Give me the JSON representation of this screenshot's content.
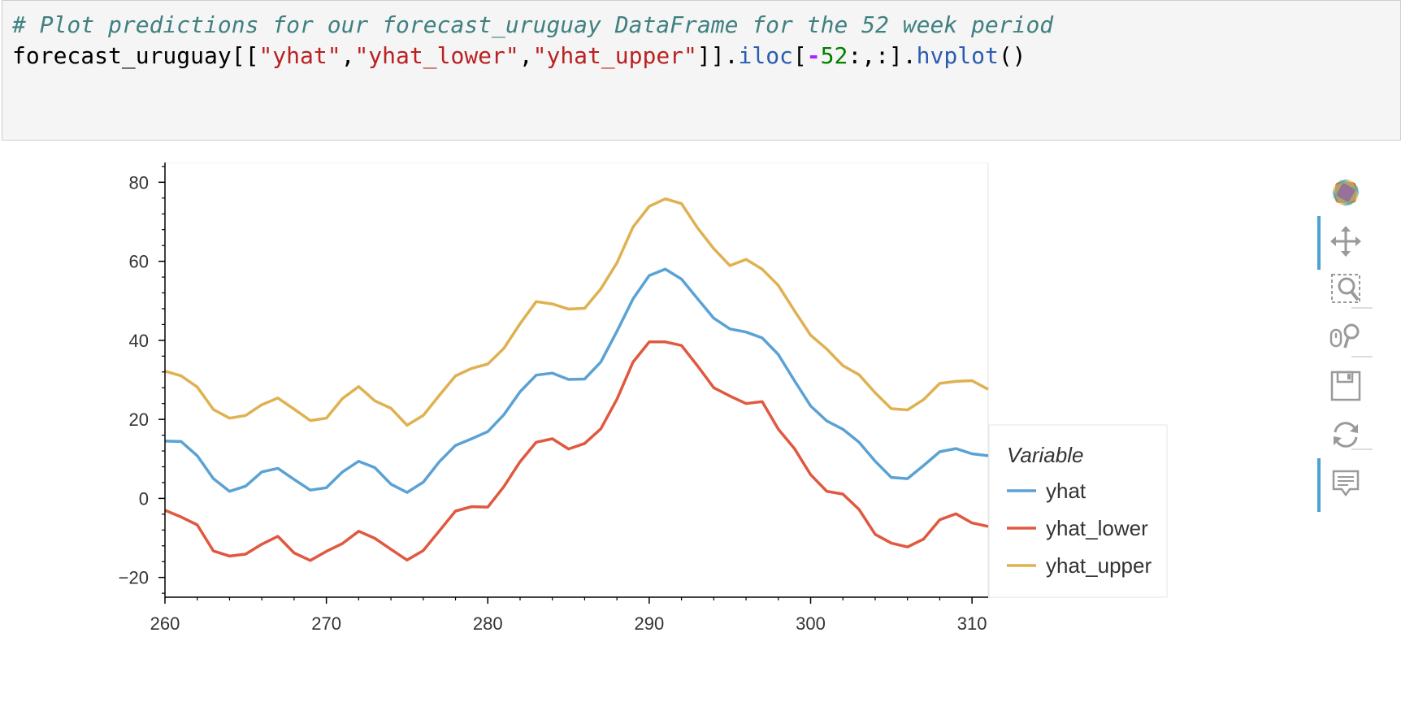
{
  "code": {
    "comment": "# Plot predictions for our forecast_uruguay DataFrame for the 52 week period",
    "t_var": "forecast_uruguay",
    "t_open": "[[",
    "t_s1": "\"yhat\"",
    "t_c1": ",",
    "t_s2": "\"yhat_lower\"",
    "t_c2": ",",
    "t_s3": "\"yhat_upper\"",
    "t_close": "]].",
    "t_iloc": "iloc",
    "t_b": "[",
    "t_minus": "-",
    "t_num": "52",
    "t_slice": ":,:].",
    "t_hv": "hvplot",
    "t_paren": "()"
  },
  "chart_data": {
    "type": "line",
    "x": [
      260,
      261,
      262,
      263,
      264,
      265,
      266,
      267,
      268,
      269,
      270,
      271,
      272,
      273,
      274,
      275,
      276,
      277,
      278,
      279,
      280,
      281,
      282,
      283,
      284,
      285,
      286,
      287,
      288,
      289,
      290,
      291,
      292,
      293,
      294,
      295,
      296,
      297,
      298,
      299,
      300,
      301,
      302,
      303,
      304,
      305,
      306,
      307,
      308,
      309,
      310,
      311
    ],
    "series": [
      {
        "name": "yhat",
        "color": "#5aa2d4",
        "values": [
          14.5,
          14.4,
          10.8,
          5,
          1.8,
          3.1,
          6.7,
          7.6,
          4.8,
          2.1,
          2.7,
          6.7,
          9.4,
          7.8,
          3.6,
          1.5,
          4.1,
          9.3,
          13.4,
          15.1,
          16.9,
          21.2,
          27,
          31.2,
          31.7,
          30.1,
          30.2,
          34.5,
          42.3,
          50.5,
          56.4,
          58,
          55.5,
          50.5,
          45.6,
          42.9,
          42.1,
          40.6,
          36.4,
          29.8,
          23.4,
          19.6,
          17.5,
          14.2,
          9.4,
          5.3,
          5,
          8.3,
          11.8,
          12.6,
          11.3,
          10.8
        ]
      },
      {
        "name": "yhat_lower",
        "color": "#e0583f",
        "values": [
          -3,
          -4.7,
          -6.7,
          -13.3,
          -14.6,
          -14.1,
          -11.6,
          -9.6,
          -13.8,
          -15.7,
          -13.4,
          -11.4,
          -8.3,
          -10.1,
          -12.9,
          -15.6,
          -13.2,
          -8.2,
          -3.2,
          -2.1,
          -2.2,
          3,
          9.3,
          14.2,
          15.1,
          12.5,
          13.9,
          17.6,
          25.1,
          34.5,
          39.6,
          39.6,
          38.7,
          33.5,
          28,
          25.9,
          24,
          24.5,
          17.5,
          12.6,
          6,
          1.8,
          1.1,
          -2.8,
          -9.1,
          -11.3,
          -12.3,
          -10.3,
          -5.4,
          -3.9,
          -6.2,
          -7.1
        ]
      },
      {
        "name": "yhat_upper",
        "color": "#dfb150",
        "values": [
          32.2,
          31,
          28.2,
          22.5,
          20.3,
          21,
          23.7,
          25.4,
          22.6,
          19.7,
          20.3,
          25.3,
          28.3,
          24.7,
          22.8,
          18.5,
          21,
          26.1,
          31,
          32.9,
          34,
          38,
          44.2,
          49.8,
          49.2,
          47.9,
          48.1,
          53,
          59.6,
          68.7,
          73.9,
          75.8,
          74.6,
          68.4,
          63.2,
          58.9,
          60.5,
          58,
          53.9,
          47.5,
          41.3,
          37.8,
          33.6,
          31.3,
          26.7,
          22.7,
          22.4,
          25,
          29.1,
          29.6,
          29.8,
          27.6
        ]
      }
    ],
    "xlim": [
      260,
      311
    ],
    "ylim": [
      -25,
      85
    ],
    "xticks": [
      260,
      270,
      280,
      290,
      300,
      310
    ],
    "yticks": [
      -20,
      0,
      20,
      40,
      60,
      80
    ],
    "legend_title": "Variable",
    "legend_position": "right",
    "grid": false
  },
  "toolbar": {
    "tools": [
      {
        "icon": "bokeh-logo-icon",
        "active": false
      },
      {
        "icon": "pan-icon",
        "active": true
      },
      {
        "icon": "box-zoom-icon",
        "active": false
      },
      {
        "icon": "wheel-zoom-icon",
        "active": false
      },
      {
        "icon": "save-icon",
        "active": false
      },
      {
        "icon": "reset-icon",
        "active": false
      },
      {
        "icon": "hover-icon",
        "active": true
      }
    ]
  }
}
